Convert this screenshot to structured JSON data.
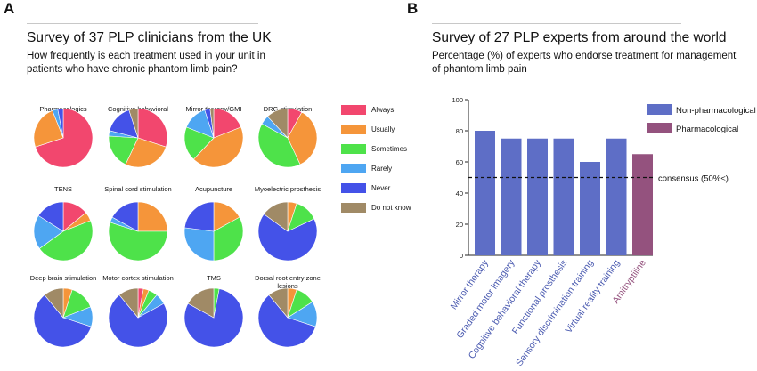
{
  "panel_a": {
    "letter": "A",
    "title": "Survey of 37 PLP clinicians from the UK",
    "subtitle": "How frequently is each treatment used in your unit in patients who have chronic phantom limb pain?"
  },
  "panel_b": {
    "letter": "B",
    "title": "Survey of 27 PLP experts from around the world",
    "subtitle": "Percentage (%) of experts who endorse treatment for management of phantom limb pain"
  },
  "colors": {
    "Always": "#f2476e",
    "Usually": "#f5953a",
    "Sometimes": "#4ee24a",
    "Rarely": "#4ea6f2",
    "Never": "#4452e8",
    "Do not know": "#a08a66",
    "Non-pharmacological": "#5e6ec6",
    "Pharmacological": "#94527e",
    "nonpharm_label": "#4a5ab0",
    "pharm_label": "#94527e"
  },
  "chart_data": [
    {
      "type": "pie",
      "categories": [
        "Always",
        "Usually",
        "Sometimes",
        "Rarely",
        "Never",
        "Do not know"
      ],
      "pies": [
        {
          "label": "Pharmacologics",
          "values": [
            70,
            24,
            0,
            3,
            3,
            0
          ]
        },
        {
          "label": "Cognitive behavioral therapy",
          "values": [
            30,
            27,
            19,
            3,
            16,
            5
          ]
        },
        {
          "label": "Mirror therapy/GMI",
          "values": [
            19,
            43,
            19,
            14,
            3,
            2
          ]
        },
        {
          "label": "DRG stimulation",
          "values": [
            8,
            35,
            40,
            5,
            0,
            12
          ]
        },
        {
          "label": "TENS",
          "values": [
            14,
            5,
            46,
            19,
            16,
            0
          ]
        },
        {
          "label": "Spinal cord stimulation",
          "values": [
            0,
            25,
            55,
            3,
            17,
            0
          ]
        },
        {
          "label": "Acupuncture",
          "values": [
            0,
            17,
            33,
            27,
            23,
            0
          ]
        },
        {
          "label": "Myoelectric prosthesis",
          "values": [
            0,
            5,
            13,
            0,
            67,
            15
          ]
        },
        {
          "label": "Deep brain stimulation",
          "values": [
            0,
            5,
            14,
            11,
            59,
            11
          ]
        },
        {
          "label": "Motor cortex stimulation",
          "values": [
            3,
            3,
            5,
            6,
            72,
            11
          ]
        },
        {
          "label": "TMS",
          "values": [
            0,
            0,
            3,
            0,
            80,
            17
          ]
        },
        {
          "label": "Dorsal root entry zone lesions",
          "values": [
            0,
            5,
            11,
            14,
            59,
            11
          ]
        }
      ]
    },
    {
      "type": "bar",
      "categories": [
        "Mirror therapy",
        "Graded motor imagery",
        "Cognitive behavioral therapy",
        "Functional prosthesis",
        "Sensory discrimination training",
        "Virtual reality training",
        "Amitryptiline"
      ],
      "values": [
        80,
        75,
        75,
        75,
        60,
        75,
        65
      ],
      "groups": [
        "Non-pharmacological",
        "Non-pharmacological",
        "Non-pharmacological",
        "Non-pharmacological",
        "Non-pharmacological",
        "Non-pharmacological",
        "Pharmacological"
      ],
      "ylim": [
        0,
        100
      ],
      "yticks": [
        0,
        20,
        40,
        60,
        80,
        100
      ],
      "legend": [
        "Non-pharmacological",
        "Pharmacological"
      ],
      "legend_position": "top-right",
      "reference_line": {
        "value": 50,
        "label": "consensus (50%<)"
      }
    }
  ]
}
